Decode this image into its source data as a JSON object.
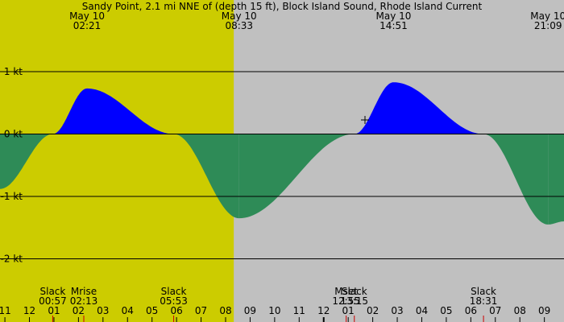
{
  "chart_data": {
    "type": "area",
    "title": "Sandy Point, 2.1 mi NNE of (depth 15 ft), Block Island Sound, Rhode Island Current",
    "unit": "kt",
    "x_unit": "hour",
    "xlim": [
      10.8,
      33.8
    ],
    "ylim": [
      -2.3,
      1.6
    ],
    "daylight": [
      5.883,
      20.333
    ],
    "y_ticks": [
      {
        "value": 1,
        "label": "1 kt"
      },
      {
        "value": 0,
        "label": "0 kt"
      },
      {
        "value": -1,
        "label": "-1 kt"
      },
      {
        "value": -2,
        "label": "-2 kt"
      }
    ],
    "x_tick_labels": [
      {
        "hour": 11,
        "label": "11"
      },
      {
        "hour": 12,
        "label": "12"
      },
      {
        "hour": 13,
        "label": "01"
      },
      {
        "hour": 14,
        "label": "02"
      },
      {
        "hour": 15,
        "label": "03"
      },
      {
        "hour": 16,
        "label": "04"
      },
      {
        "hour": 17,
        "label": "05"
      },
      {
        "hour": 18,
        "label": "06"
      },
      {
        "hour": 19,
        "label": "07"
      },
      {
        "hour": 20,
        "label": "08"
      },
      {
        "hour": 21,
        "label": "09"
      },
      {
        "hour": 22,
        "label": "10"
      },
      {
        "hour": 23,
        "label": "11"
      },
      {
        "hour": 24,
        "label": "12"
      },
      {
        "hour": 25,
        "label": "01"
      },
      {
        "hour": 26,
        "label": "02"
      },
      {
        "hour": 27,
        "label": "03"
      },
      {
        "hour": 28,
        "label": "04"
      },
      {
        "hour": 29,
        "label": "05"
      },
      {
        "hour": 30,
        "label": "06"
      },
      {
        "hour": 31,
        "label": "07"
      },
      {
        "hour": 32,
        "label": "08"
      },
      {
        "hour": 33,
        "label": "09"
      }
    ],
    "extremes": [
      {
        "hour": 14.35,
        "value": 0.73,
        "date": "May 10",
        "time": "02:21"
      },
      {
        "hour": 20.55,
        "value": -1.35,
        "date": "May 10",
        "time": "08:33"
      },
      {
        "hour": 26.85,
        "value": 0.83,
        "date": "May 10",
        "time": "14:51"
      },
      {
        "hour": 33.15,
        "value": -1.45,
        "date": "May 10",
        "time": "21:09"
      }
    ],
    "events": [
      {
        "hour": 12.95,
        "name": "Slack",
        "time": "00:57"
      },
      {
        "hour": 14.217,
        "name": "Mrise",
        "time": "02:13"
      },
      {
        "hour": 17.883,
        "name": "Slack",
        "time": "05:53"
      },
      {
        "hour": 24.917,
        "name": "Mset",
        "time": "12:55"
      },
      {
        "hour": 25.25,
        "name": "Slack",
        "time": "13:15"
      },
      {
        "hour": 30.517,
        "name": "Slack",
        "time": "18:31"
      }
    ],
    "series": [
      {
        "values": [
          [
            10.8,
            -0.88
          ],
          [
            12.95,
            0
          ],
          [
            14.35,
            0.73
          ],
          [
            17.883,
            0
          ],
          [
            20.55,
            -1.35
          ],
          [
            25.25,
            0
          ],
          [
            26.85,
            0.83
          ],
          [
            30.517,
            0
          ],
          [
            33.15,
            -1.45
          ],
          [
            33.8,
            -1.4
          ]
        ]
      }
    ],
    "colors": {
      "flood": "#0000ff",
      "ebb": "#2e8b57",
      "daylight": "#cccc00",
      "night": "#c0c0c0",
      "event_tick": "#cc0000"
    }
  }
}
